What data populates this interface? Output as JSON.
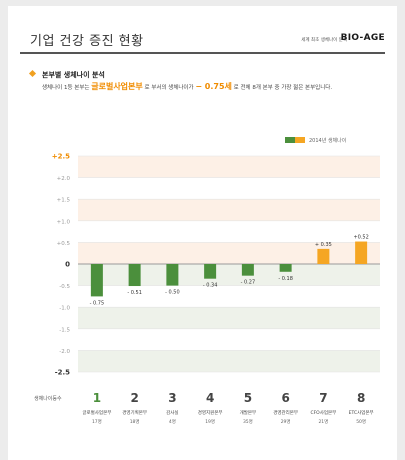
{
  "header": {
    "title": "기업 건강 증진 현황",
    "tagline": "세계 최초 생체나이 분석",
    "brand": "BIO-AGE"
  },
  "section": {
    "heading": "본부별 생체나이 분석",
    "desc_pre": "생체나이 1등 본부는",
    "desc_highlight": "글로벌사업본부",
    "desc_mid": "로 부서의 생체나이가",
    "desc_value": "− 0.75세",
    "desc_post": "로 전체 8개 본부 중 가장 젊은 본부입니다."
  },
  "colors": {
    "negative": "#4b8f3c",
    "positive": "#f5a623",
    "band_upper": "#fdf0e6",
    "band_lower": "#eef2ea",
    "accent": "#f08c00"
  },
  "chart_data": {
    "type": "bar",
    "legend": "2014년 생체나이",
    "legend_position": "top-right",
    "ylim": [
      -2.5,
      2.5
    ],
    "yticks": [
      "+2.5",
      "+2.0",
      "+1.5",
      "+1.0",
      "+0.5",
      "0",
      "-0.5",
      "-1.0",
      "-1.5",
      "-2.0",
      "-2.5"
    ],
    "ytick_values": [
      2.5,
      2.0,
      1.5,
      1.0,
      0.5,
      0,
      -0.5,
      -1.0,
      -1.5,
      -2.0,
      -2.5
    ],
    "values": [
      -0.75,
      -0.51,
      -0.5,
      -0.34,
      -0.27,
      -0.18,
      0.35,
      0.52
    ],
    "value_labels": [
      "- 0.75",
      "- 0.51",
      "- 0.50",
      "- 0.34",
      "- 0.27",
      "- 0.18",
      "+ 0.35",
      "+0.52"
    ],
    "row_label": "생체나이등수",
    "ranks": [
      "1",
      "2",
      "3",
      "4",
      "5",
      "6",
      "7",
      "8"
    ],
    "categories": [
      "글로벌사업본부",
      "경영기획본부",
      "감사실",
      "경영지원본부",
      "개발본부",
      "경영관리본부",
      "CFO사업본부",
      "ETC사업본부"
    ],
    "counts": [
      "17명",
      "18명",
      "4명",
      "19명",
      "35명",
      "29명",
      "21명",
      "50명"
    ]
  }
}
